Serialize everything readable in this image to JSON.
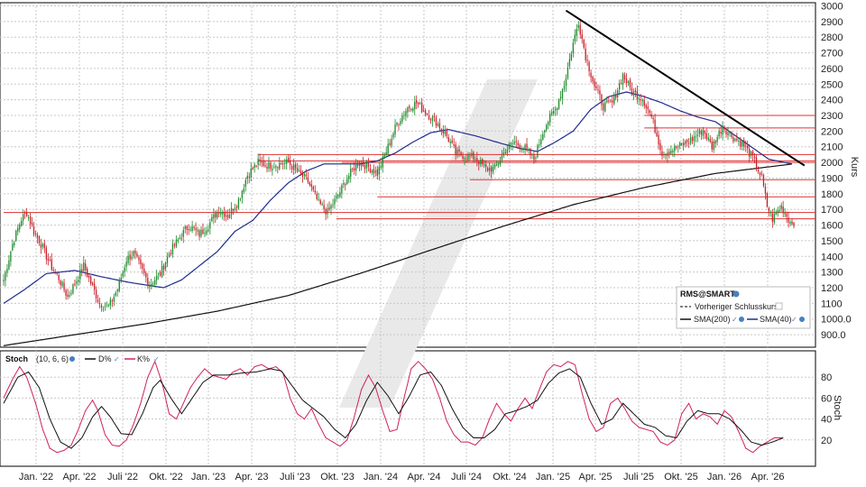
{
  "chart_data": {
    "type": "candlestick",
    "symbol": "RMS@SMART",
    "price_axis": {
      "label": "Kurs",
      "ylim": [
        820,
        3020
      ],
      "ticks": [
        "3000",
        "2900",
        "2800",
        "2700",
        "2600",
        "2500",
        "2400",
        "2300",
        "2200",
        "2100",
        "2000",
        "1900",
        "1800",
        "1700",
        "1600",
        "1500",
        "1400",
        "1300",
        "1200",
        "1100",
        "1000.0",
        "900.0"
      ],
      "tick_values": [
        3000,
        2900,
        2800,
        2700,
        2600,
        2500,
        2400,
        2300,
        2200,
        2100,
        2000,
        1900,
        1800,
        1700,
        1600,
        1500,
        1400,
        1300,
        1200,
        1100,
        1000,
        900
      ]
    },
    "time_axis": {
      "ticks": [
        "Jan. '22",
        "Apr. '22",
        "Juli '22",
        "Okt. '22",
        "Jan. '23",
        "Apr. '23",
        "Juli '23",
        "Okt. '23",
        "Jan. '24",
        "Apr. '24",
        "Juli '24",
        "Okt. '24",
        "Jan. '25",
        "Apr. '25",
        "Juli '25",
        "Okt. '25",
        "Jan. '26",
        "Apr. '26"
      ]
    },
    "legend": {
      "title": "RMS@SMART",
      "entries": [
        "Vorheriger Schlusskurs",
        "SMA(200)",
        "SMA(40)"
      ]
    },
    "price_anchors": [
      [
        0,
        1250
      ],
      [
        5,
        1480
      ],
      [
        10,
        1640
      ],
      [
        13,
        1680
      ],
      [
        17,
        1560
      ],
      [
        21,
        1480
      ],
      [
        26,
        1350
      ],
      [
        31,
        1260
      ],
      [
        36,
        1140
      ],
      [
        41,
        1250
      ],
      [
        45,
        1340
      ],
      [
        49,
        1230
      ],
      [
        54,
        1100
      ],
      [
        59,
        1080
      ],
      [
        64,
        1190
      ],
      [
        69,
        1380
      ],
      [
        73,
        1420
      ],
      [
        77,
        1330
      ],
      [
        82,
        1220
      ],
      [
        88,
        1290
      ],
      [
        93,
        1420
      ],
      [
        99,
        1520
      ],
      [
        104,
        1600
      ],
      [
        110,
        1540
      ],
      [
        115,
        1600
      ],
      [
        121,
        1700
      ],
      [
        126,
        1660
      ],
      [
        132,
        1760
      ],
      [
        137,
        1920
      ],
      [
        143,
        2000
      ],
      [
        149,
        1980
      ],
      [
        154,
        1990
      ],
      [
        160,
        2000
      ],
      [
        166,
        1930
      ],
      [
        171,
        1880
      ],
      [
        177,
        1740
      ],
      [
        182,
        1680
      ],
      [
        188,
        1790
      ],
      [
        193,
        1900
      ],
      [
        199,
        2000
      ],
      [
        204,
        1980
      ],
      [
        210,
        1930
      ],
      [
        216,
        2100
      ],
      [
        221,
        2250
      ],
      [
        227,
        2350
      ],
      [
        232,
        2380
      ],
      [
        237,
        2320
      ],
      [
        243,
        2260
      ],
      [
        249,
        2170
      ],
      [
        254,
        2060
      ],
      [
        260,
        2040
      ],
      [
        265,
        2030
      ],
      [
        271,
        1960
      ],
      [
        276,
        1960
      ],
      [
        282,
        2080
      ],
      [
        287,
        2130
      ],
      [
        293,
        2090
      ],
      [
        298,
        2020
      ],
      [
        304,
        2230
      ],
      [
        310,
        2340
      ],
      [
        315,
        2500
      ],
      [
        320,
        2760
      ],
      [
        323,
        2900
      ],
      [
        327,
        2680
      ],
      [
        332,
        2490
      ],
      [
        337,
        2360
      ],
      [
        342,
        2380
      ],
      [
        348,
        2560
      ],
      [
        353,
        2450
      ],
      [
        359,
        2410
      ],
      [
        364,
        2290
      ],
      [
        370,
        2060
      ],
      [
        375,
        2080
      ],
      [
        381,
        2110
      ],
      [
        387,
        2150
      ],
      [
        393,
        2210
      ],
      [
        398,
        2100
      ],
      [
        404,
        2230
      ],
      [
        410,
        2160
      ],
      [
        415,
        2120
      ],
      [
        421,
        2030
      ],
      [
        426,
        1900
      ],
      [
        429,
        1720
      ],
      [
        432,
        1640
      ],
      [
        437,
        1720
      ],
      [
        442,
        1620
      ]
    ],
    "sma200_anchors": [
      [
        0,
        830
      ],
      [
        40,
        900
      ],
      [
        80,
        970
      ],
      [
        120,
        1050
      ],
      [
        160,
        1150
      ],
      [
        200,
        1290
      ],
      [
        240,
        1440
      ],
      [
        280,
        1590
      ],
      [
        320,
        1730
      ],
      [
        360,
        1840
      ],
      [
        400,
        1930
      ],
      [
        443,
        1990
      ]
    ],
    "sma40_anchors": [
      [
        0,
        1100
      ],
      [
        12,
        1190
      ],
      [
        24,
        1290
      ],
      [
        40,
        1310
      ],
      [
        55,
        1270
      ],
      [
        70,
        1235
      ],
      [
        90,
        1200
      ],
      [
        100,
        1250
      ],
      [
        110,
        1340
      ],
      [
        120,
        1430
      ],
      [
        130,
        1560
      ],
      [
        140,
        1630
      ],
      [
        150,
        1760
      ],
      [
        160,
        1870
      ],
      [
        170,
        1945
      ],
      [
        180,
        1990
      ],
      [
        190,
        1990
      ],
      [
        200,
        1990
      ],
      [
        210,
        2010
      ],
      [
        220,
        2060
      ],
      [
        230,
        2130
      ],
      [
        240,
        2190
      ],
      [
        250,
        2210
      ],
      [
        265,
        2170
      ],
      [
        280,
        2120
      ],
      [
        290,
        2090
      ],
      [
        300,
        2070
      ],
      [
        310,
        2130
      ],
      [
        320,
        2200
      ],
      [
        330,
        2340
      ],
      [
        340,
        2420
      ],
      [
        350,
        2450
      ],
      [
        360,
        2420
      ],
      [
        370,
        2380
      ],
      [
        380,
        2330
      ],
      [
        390,
        2290
      ],
      [
        400,
        2260
      ],
      [
        410,
        2180
      ],
      [
        420,
        2100
      ],
      [
        430,
        2020
      ],
      [
        443,
        1990
      ]
    ],
    "horizontal_levels": [
      {
        "value": 2300,
        "from": 360
      },
      {
        "value": 2220,
        "from": 360
      },
      {
        "value": 2050,
        "from": 143
      },
      {
        "value": 2010,
        "from": 143
      },
      {
        "value": 2000,
        "from": 190
      },
      {
        "value": 1890,
        "from": 262
      },
      {
        "value": 1780,
        "from": 210
      },
      {
        "value": 1680,
        "from": 0
      },
      {
        "value": 1640,
        "from": 187
      }
    ],
    "trendline": {
      "from": [
        316,
        2970
      ],
      "to": [
        450,
        1980
      ]
    },
    "stochastic": {
      "title": "Stoch",
      "params": "(10, 6, 6)",
      "series_names": [
        "D%",
        "K%"
      ],
      "axis_label": "Stoch",
      "ylim": [
        0,
        100
      ],
      "ticks": [
        "80",
        "60",
        "40",
        "20"
      ],
      "tick_values": [
        80,
        60,
        40,
        20
      ],
      "d_anchors": [
        [
          0,
          55
        ],
        [
          8,
          80
        ],
        [
          14,
          85
        ],
        [
          20,
          70
        ],
        [
          26,
          40
        ],
        [
          32,
          18
        ],
        [
          38,
          12
        ],
        [
          44,
          22
        ],
        [
          50,
          42
        ],
        [
          55,
          52
        ],
        [
          60,
          42
        ],
        [
          66,
          26
        ],
        [
          72,
          25
        ],
        [
          78,
          45
        ],
        [
          84,
          70
        ],
        [
          88,
          77
        ],
        [
          94,
          60
        ],
        [
          100,
          45
        ],
        [
          106,
          60
        ],
        [
          112,
          75
        ],
        [
          118,
          82
        ],
        [
          126,
          82
        ],
        [
          134,
          84
        ],
        [
          142,
          85
        ],
        [
          150,
          88
        ],
        [
          156,
          86
        ],
        [
          162,
          72
        ],
        [
          168,
          58
        ],
        [
          174,
          50
        ],
        [
          180,
          42
        ],
        [
          186,
          30
        ],
        [
          192,
          22
        ],
        [
          198,
          35
        ],
        [
          204,
          58
        ],
        [
          210,
          75
        ],
        [
          216,
          62
        ],
        [
          222,
          45
        ],
        [
          228,
          62
        ],
        [
          234,
          82
        ],
        [
          240,
          85
        ],
        [
          246,
          72
        ],
        [
          252,
          50
        ],
        [
          258,
          32
        ],
        [
          264,
          22
        ],
        [
          270,
          22
        ],
        [
          276,
          30
        ],
        [
          282,
          45
        ],
        [
          288,
          48
        ],
        [
          294,
          52
        ],
        [
          300,
          58
        ],
        [
          306,
          74
        ],
        [
          312,
          84
        ],
        [
          318,
          88
        ],
        [
          324,
          80
        ],
        [
          330,
          55
        ],
        [
          336,
          35
        ],
        [
          342,
          40
        ],
        [
          348,
          55
        ],
        [
          354,
          45
        ],
        [
          360,
          35
        ],
        [
          366,
          32
        ],
        [
          372,
          24
        ],
        [
          378,
          22
        ],
        [
          384,
          38
        ],
        [
          390,
          48
        ],
        [
          396,
          45
        ],
        [
          402,
          45
        ],
        [
          408,
          40
        ],
        [
          414,
          30
        ],
        [
          420,
          18
        ],
        [
          426,
          15
        ],
        [
          432,
          18
        ],
        [
          438,
          22
        ]
      ],
      "k_anchors": [
        [
          0,
          60
        ],
        [
          5,
          78
        ],
        [
          9,
          90
        ],
        [
          13,
          80
        ],
        [
          18,
          55
        ],
        [
          22,
          30
        ],
        [
          26,
          12
        ],
        [
          30,
          8
        ],
        [
          34,
          10
        ],
        [
          38,
          15
        ],
        [
          42,
          30
        ],
        [
          46,
          48
        ],
        [
          50,
          58
        ],
        [
          53,
          48
        ],
        [
          57,
          25
        ],
        [
          61,
          15
        ],
        [
          65,
          14
        ],
        [
          69,
          20
        ],
        [
          73,
          35
        ],
        [
          77,
          55
        ],
        [
          81,
          80
        ],
        [
          85,
          95
        ],
        [
          89,
          75
        ],
        [
          93,
          45
        ],
        [
          97,
          40
        ],
        [
          101,
          55
        ],
        [
          105,
          70
        ],
        [
          109,
          80
        ],
        [
          113,
          88
        ],
        [
          117,
          82
        ],
        [
          121,
          80
        ],
        [
          125,
          78
        ],
        [
          129,
          85
        ],
        [
          133,
          88
        ],
        [
          137,
          82
        ],
        [
          141,
          90
        ],
        [
          145,
          92
        ],
        [
          149,
          88
        ],
        [
          153,
          90
        ],
        [
          157,
          84
        ],
        [
          161,
          60
        ],
        [
          165,
          45
        ],
        [
          169,
          40
        ],
        [
          173,
          50
        ],
        [
          177,
          35
        ],
        [
          181,
          22
        ],
        [
          185,
          18
        ],
        [
          189,
          14
        ],
        [
          193,
          20
        ],
        [
          197,
          42
        ],
        [
          201,
          68
        ],
        [
          205,
          82
        ],
        [
          209,
          70
        ],
        [
          213,
          48
        ],
        [
          217,
          28
        ],
        [
          221,
          30
        ],
        [
          225,
          60
        ],
        [
          229,
          88
        ],
        [
          233,
          95
        ],
        [
          237,
          88
        ],
        [
          241,
          78
        ],
        [
          245,
          60
        ],
        [
          249,
          38
        ],
        [
          253,
          25
        ],
        [
          257,
          18
        ],
        [
          261,
          18
        ],
        [
          265,
          15
        ],
        [
          269,
          22
        ],
        [
          273,
          40
        ],
        [
          277,
          55
        ],
        [
          281,
          45
        ],
        [
          285,
          38
        ],
        [
          289,
          50
        ],
        [
          293,
          60
        ],
        [
          297,
          50
        ],
        [
          301,
          68
        ],
        [
          305,
          85
        ],
        [
          309,
          92
        ],
        [
          313,
          90
        ],
        [
          317,
          95
        ],
        [
          321,
          92
        ],
        [
          325,
          65
        ],
        [
          329,
          40
        ],
        [
          333,
          28
        ],
        [
          337,
          32
        ],
        [
          341,
          55
        ],
        [
          345,
          60
        ],
        [
          349,
          50
        ],
        [
          353,
          38
        ],
        [
          357,
          32
        ],
        [
          361,
          30
        ],
        [
          365,
          28
        ],
        [
          369,
          18
        ],
        [
          373,
          15
        ],
        [
          377,
          20
        ],
        [
          381,
          45
        ],
        [
          385,
          55
        ],
        [
          389,
          40
        ],
        [
          393,
          45
        ],
        [
          397,
          42
        ],
        [
          401,
          35
        ],
        [
          405,
          48
        ],
        [
          409,
          42
        ],
        [
          413,
          28
        ],
        [
          417,
          12
        ],
        [
          421,
          8
        ],
        [
          425,
          14
        ],
        [
          429,
          18
        ],
        [
          433,
          22
        ],
        [
          438,
          22
        ]
      ]
    }
  }
}
